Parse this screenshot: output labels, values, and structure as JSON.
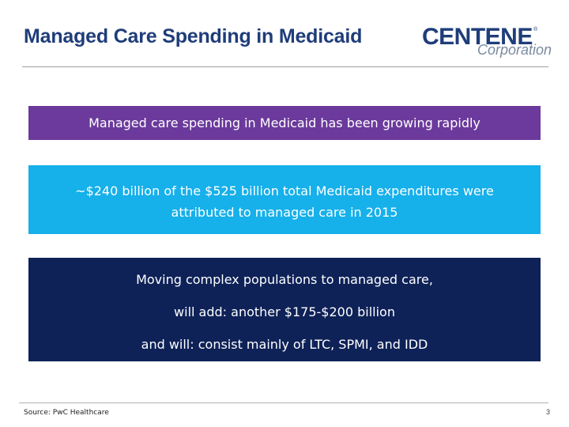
{
  "header": {
    "title": "Managed Care Spending in Medicaid",
    "logo": {
      "name": "CENTENE",
      "registered": "®",
      "subtitle": "Corporation",
      "color": "#1f3d7a"
    }
  },
  "boxes": {
    "headline": {
      "text": "Managed care spending in Medicaid has been growing rapidly",
      "color": "#6b3a9c"
    },
    "stat": {
      "line1": "~$240 billion of the $525 billion total Medicaid expenditures were",
      "line2": "attributed to managed care in 2015",
      "color": "#16b0ea"
    },
    "outlook": {
      "lines": [
        "Moving complex populations to managed care,",
        "will add: another $175-$200 billion",
        "and will: consist mainly of LTC, SPMI, and IDD"
      ],
      "color": "#0e2258"
    }
  },
  "footer": {
    "source": "Source: PwC Healthcare",
    "page_number": "3"
  }
}
